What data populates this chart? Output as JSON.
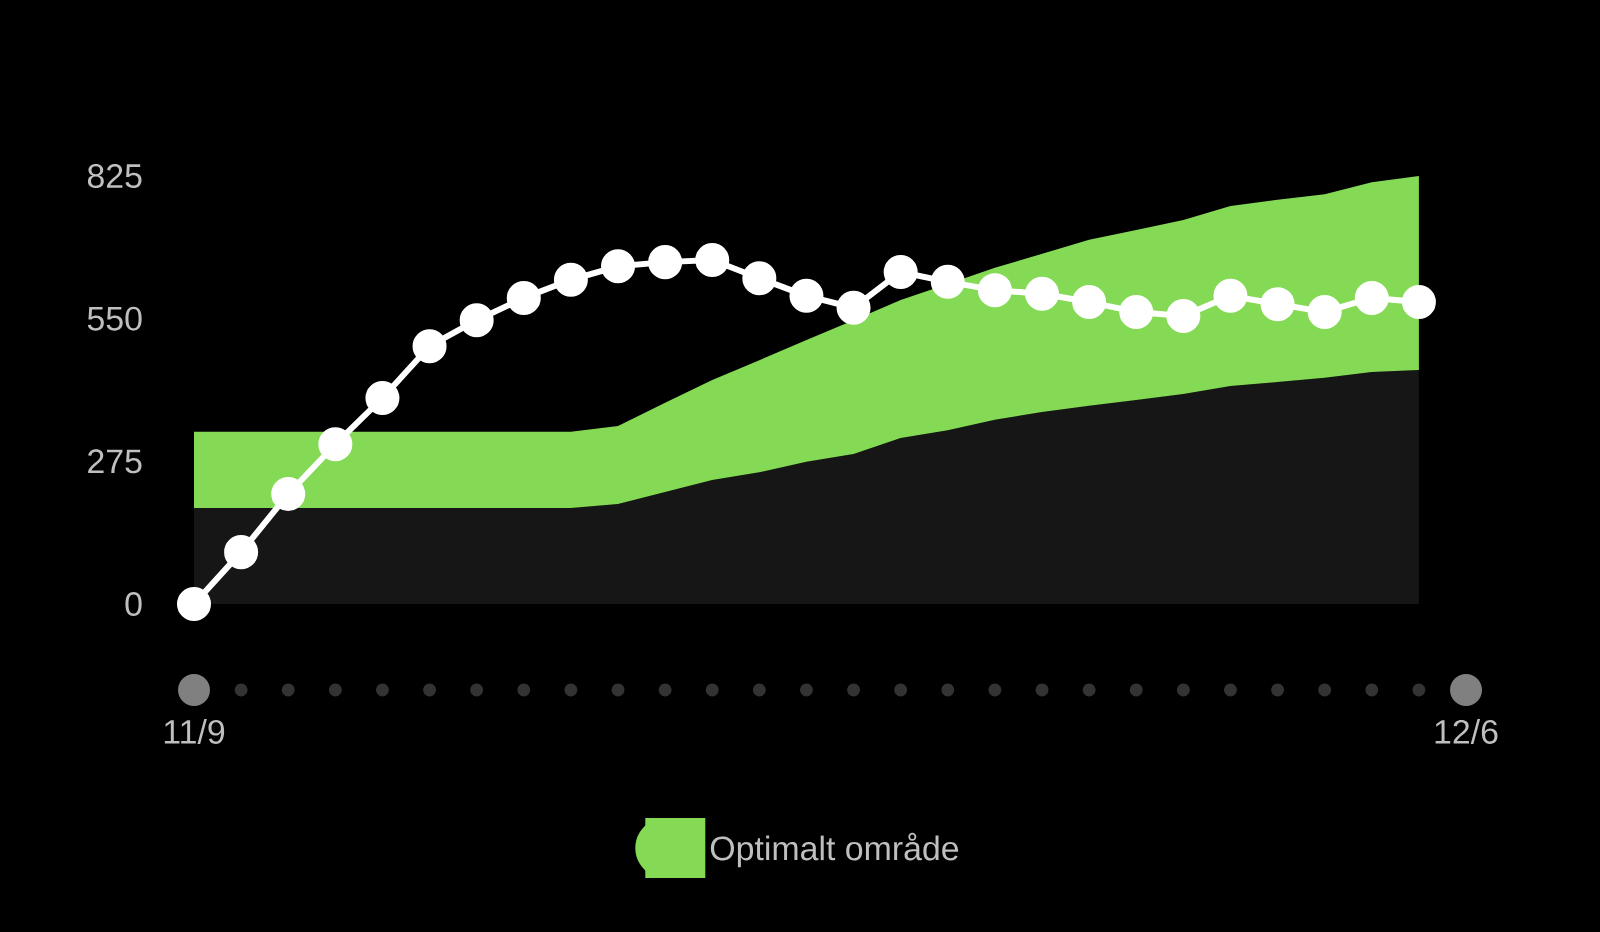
{
  "chart_data": {
    "type": "area",
    "categories": [
      "11/9",
      null,
      null,
      null,
      null,
      null,
      null,
      null,
      null,
      null,
      null,
      null,
      null,
      null,
      null,
      null,
      null,
      null,
      null,
      null,
      null,
      null,
      null,
      null,
      null,
      null,
      null,
      "12/6"
    ],
    "ylim": [
      0,
      825
    ],
    "yticks": [
      0,
      275,
      550,
      825
    ],
    "stacked": true,
    "legend": "bottom",
    "series": [
      {
        "color": "#161616",
        "values": [
          185,
          185,
          185,
          185,
          185,
          185,
          185,
          185,
          185,
          193,
          216,
          239,
          254,
          274,
          289,
          320,
          335,
          355,
          370,
          382,
          393,
          405,
          420,
          428,
          436,
          447,
          451,
          null
        ]
      },
      {
        "name": "Optimalt område",
        "color": "#84d955",
        "values": [
          147,
          147,
          147,
          147,
          147,
          147,
          147,
          147,
          147,
          150,
          172,
          193,
          216,
          235,
          258,
          266,
          282,
          293,
          305,
          320,
          328,
          335,
          347,
          351,
          354,
          366,
          374,
          null
        ]
      },
      {
        "type": "line",
        "marker": "circle",
        "color": "#ffffff",
        "values": [
          0,
          100,
          212,
          308,
          397,
          497,
          547,
          590,
          625,
          651,
          659,
          663,
          628,
          594,
          571,
          640,
          621,
          605,
          598,
          582,
          563,
          555,
          594,
          578,
          563,
          590,
          582,
          null
        ]
      }
    ]
  }
}
